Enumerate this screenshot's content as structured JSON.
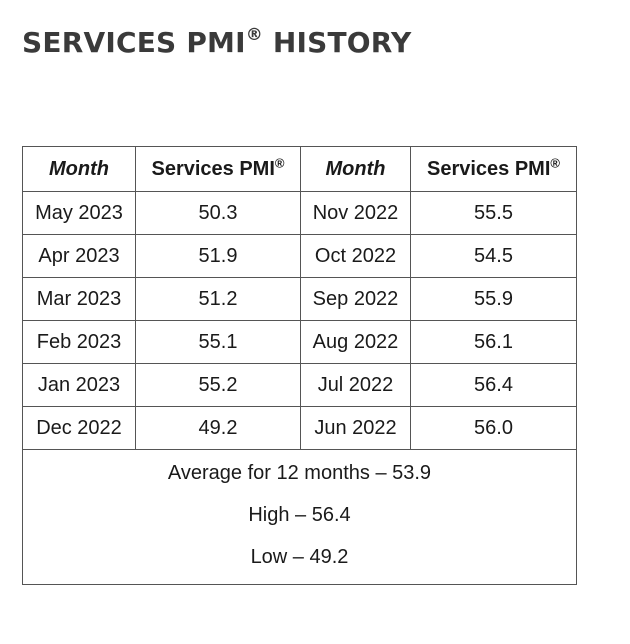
{
  "title": {
    "text": "SERVICES PMI",
    "mark": "®",
    "suffix": " HISTORY"
  },
  "table": {
    "headers": {
      "month": "Month",
      "pmi": "Services PMI",
      "pmi_mark": "®"
    },
    "rows": [
      {
        "left_month": "May 2023",
        "left_value": "50.3",
        "right_month": "Nov 2022",
        "right_value": "55.5"
      },
      {
        "left_month": "Apr 2023",
        "left_value": "51.9",
        "right_month": "Oct 2022",
        "right_value": "54.5"
      },
      {
        "left_month": "Mar 2023",
        "left_value": "51.2",
        "right_month": "Sep 2022",
        "right_value": "55.9"
      },
      {
        "left_month": "Feb 2023",
        "left_value": "55.1",
        "right_month": "Aug 2022",
        "right_value": "56.1"
      },
      {
        "left_month": "Jan 2023",
        "left_value": "55.2",
        "right_month": "Jul 2022",
        "right_value": "56.4"
      },
      {
        "left_month": "Dec 2022",
        "left_value": "49.2",
        "right_month": "Jun 2022",
        "right_value": "56.0"
      }
    ],
    "summary": {
      "average": "Average for 12 months – 53.9",
      "high": "High – 56.4",
      "low": "Low – 49.2"
    }
  }
}
